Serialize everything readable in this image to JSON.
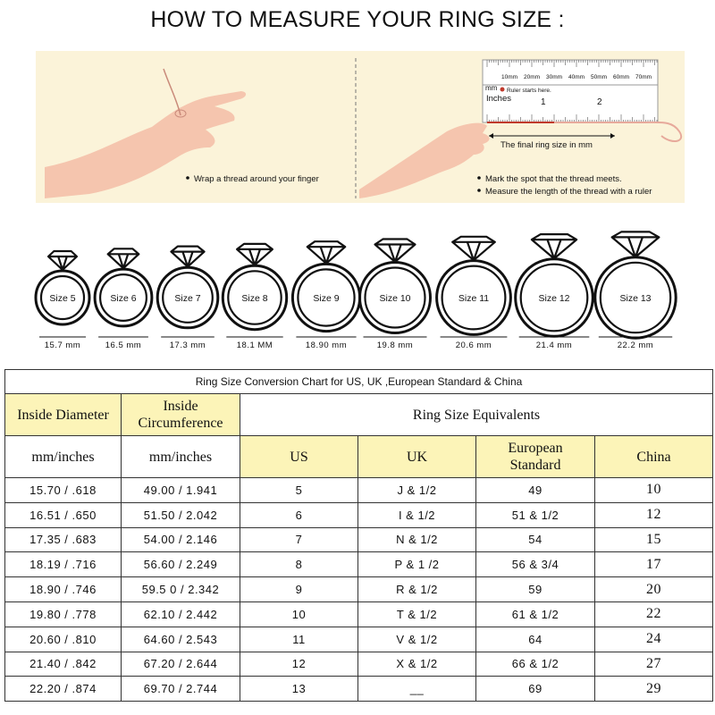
{
  "header": {
    "title": "HOW TO MEASURE YOUR RING SIZE :"
  },
  "instructions": {
    "left": {
      "steps": [
        "Wrap a thread around your finger"
      ]
    },
    "right": {
      "ruler_mm_labels": [
        "10mm",
        "20mm",
        "30mm",
        "40mm",
        "50mm",
        "60mm",
        "70mm"
      ],
      "mm_label": "mm",
      "ruler_start": "Ruler starts here.",
      "inches_label": "Inches",
      "inch_marks": [
        "1",
        "2"
      ],
      "final_size": "The final ring size in mm",
      "steps": [
        "Mark the spot that the thread meets.",
        "Measure the length of the thread with a ruler"
      ]
    }
  },
  "rings": [
    {
      "label": "Size 5",
      "diameter": "15.7 mm"
    },
    {
      "label": "Size 6",
      "diameter": "16.5 mm"
    },
    {
      "label": "Size 7",
      "diameter": "17.3 mm"
    },
    {
      "label": "Size 8",
      "diameter": "18.1 MM"
    },
    {
      "label": "Size 9",
      "diameter": "18.90 mm"
    },
    {
      "label": "Size 10",
      "diameter": "19.8 mm"
    },
    {
      "label": "Size 11",
      "diameter": "20.6 mm"
    },
    {
      "label": "Size 12",
      "diameter": "21.4 mm"
    },
    {
      "label": "Size 13",
      "diameter": "22.2 mm"
    }
  ],
  "table": {
    "caption": "Ring Size Conversion Chart for US, UK ,European Standard & China",
    "headers": {
      "diameter": "Inside Diameter",
      "circumference": "Inside Circumference",
      "equivalents": "Ring Size Equivalents",
      "units": [
        "mm/inches",
        "mm/inches"
      ],
      "systems": [
        "US",
        "UK",
        "European Standard",
        "China"
      ]
    },
    "rows": [
      [
        "15.70 / .618",
        "49.00 / 1.941",
        "5",
        "J & 1/2",
        "49",
        "10"
      ],
      [
        "16.51 / .650",
        "51.50 / 2.042",
        "6",
        "I & 1/2",
        "51 & 1/2",
        "12"
      ],
      [
        "17.35 / .683",
        "54.00 / 2.146",
        "7",
        "N & 1/2",
        "54",
        "15"
      ],
      [
        "18.19 / .716",
        "56.60 / 2.249",
        "8",
        "P & 1 /2",
        "56 & 3/4",
        "17"
      ],
      [
        "18.90 / .746",
        "59.5 0 / 2.342",
        "9",
        "R & 1/2",
        "59",
        "20"
      ],
      [
        "19.80 / .778",
        "62.10 / 2.442",
        "10",
        "T & 1/2",
        "61 & 1/2",
        "22"
      ],
      [
        "20.60 / .810",
        "64.60 / 2.543",
        "11",
        "V & 1/2",
        "64",
        "24"
      ],
      [
        "21.40 / .842",
        "67.20 / 2.644",
        "12",
        "X & 1/2",
        "66 & 1/2",
        "27"
      ],
      [
        "22.20 / .874",
        "69.70 / 2.744",
        "13",
        "__",
        "69",
        "29"
      ]
    ]
  }
}
